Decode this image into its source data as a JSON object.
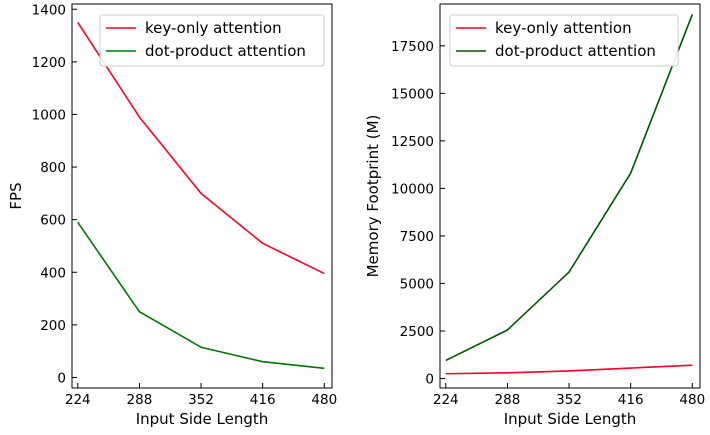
{
  "chart_data": [
    {
      "type": "line",
      "x": [
        224,
        288,
        352,
        416,
        480
      ],
      "xticks": [
        "224",
        "288",
        "352",
        "416",
        "480"
      ],
      "xlim": [
        218,
        488
      ],
      "ylim": [
        -40,
        1420
      ],
      "yticks": [
        0,
        200,
        400,
        600,
        800,
        1000,
        1200,
        1400
      ],
      "yticklabels": [
        "0",
        "200",
        "400",
        "600",
        "800",
        "1000",
        "1200",
        "1400"
      ],
      "xlabel": "Input Side Length",
      "ylabel": "FPS",
      "legend_loc": "top-right",
      "series": [
        {
          "name": "key-only attention",
          "color": "#ff0022",
          "values": [
            1350,
            990,
            700,
            510,
            395
          ]
        },
        {
          "name": "dot-product attention",
          "color": "#007700",
          "values": [
            590,
            250,
            115,
            60,
            35
          ]
        }
      ]
    },
    {
      "type": "line",
      "x": [
        224,
        288,
        352,
        416,
        480
      ],
      "xticks": [
        "224",
        "288",
        "352",
        "416",
        "480"
      ],
      "xlim": [
        218,
        488
      ],
      "ylim": [
        -500,
        19700
      ],
      "yticks": [
        0,
        2500,
        5000,
        7500,
        10000,
        12500,
        15000,
        17500
      ],
      "yticklabels": [
        "0",
        "2500",
        "5000",
        "7500",
        "10000",
        "12500",
        "15000",
        "17500"
      ],
      "xlabel": "Input Side Length",
      "ylabel": "Memory Footprint (M)",
      "legend_loc": "top-left",
      "series": [
        {
          "name": "key-only attention",
          "color": "#ff0022",
          "values": [
            250,
            300,
            400,
            550,
            700
          ]
        },
        {
          "name": "dot-product attention",
          "color": "#005500",
          "values": [
            950,
            2550,
            5600,
            10800,
            19150
          ]
        }
      ]
    }
  ]
}
